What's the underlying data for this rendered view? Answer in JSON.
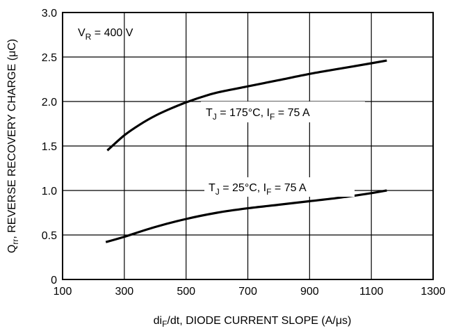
{
  "chart_data": {
    "type": "line",
    "xlabel": {
      "pre": "di",
      "sub": "F",
      "post": "/dt, DIODE CURRENT SLOPE (A/μs)"
    },
    "ylabel": {
      "pre": "Q",
      "sub": "rr",
      "post": ", REVERSE RECOVERY CHARGE (μC)"
    },
    "xlim": [
      100,
      1300
    ],
    "ylim": [
      0,
      3.0
    ],
    "x_ticks": [
      100,
      300,
      500,
      700,
      900,
      1100,
      1300
    ],
    "x_tick_labels": [
      "100",
      "300",
      "500",
      "700",
      "900",
      "1100",
      "1300"
    ],
    "y_ticks": [
      0,
      0.5,
      1.0,
      1.5,
      2.0,
      2.5,
      3.0
    ],
    "y_tick_labels": [
      "0",
      "0.5",
      "1.0",
      "1.5",
      "2.0",
      "2.5",
      "3.0"
    ],
    "grid": true,
    "annotation_vr": {
      "pre": "V",
      "sub": "R",
      "post": " = 400 V"
    },
    "series": [
      {
        "label": {
          "t": "T",
          "tsub": "J",
          "mid": " = 175°C, I",
          "isub": "F",
          "post": " = 75 A"
        },
        "x": [
          245,
          300,
          350,
          400,
          450,
          500,
          550,
          600,
          700,
          800,
          900,
          1000,
          1100,
          1150
        ],
        "y": [
          1.45,
          1.62,
          1.74,
          1.84,
          1.92,
          1.99,
          2.05,
          2.1,
          2.17,
          2.24,
          2.31,
          2.37,
          2.43,
          2.46
        ]
      },
      {
        "label": {
          "t": "T",
          "tsub": "J",
          "mid": " = 25°C, I",
          "isub": "F",
          "post": " = 75 A"
        },
        "x": [
          240,
          300,
          400,
          500,
          600,
          700,
          800,
          900,
          1000,
          1100,
          1150
        ],
        "y": [
          0.42,
          0.48,
          0.59,
          0.68,
          0.75,
          0.8,
          0.84,
          0.88,
          0.92,
          0.97,
          1.0
        ]
      }
    ]
  }
}
